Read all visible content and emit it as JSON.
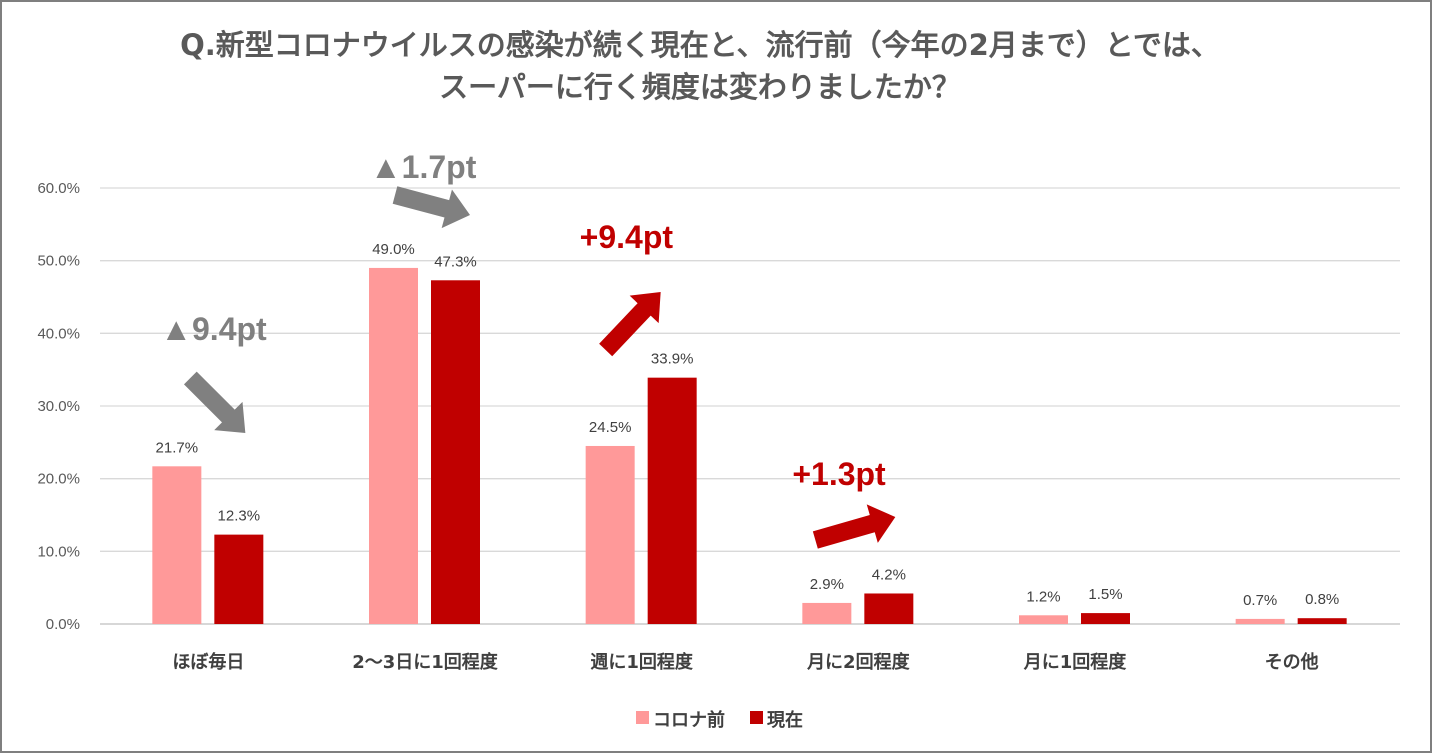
{
  "chart_data": {
    "type": "bar",
    "title_line1": "Q.新型コロナウイルスの感染が続く現在と、流行前（今年の2月まで）とでは、",
    "title_line2": "スーパーに行く頻度は変わりましたか？",
    "categories": [
      "ほぼ毎日",
      "2～3日に1回程度",
      "週に1回程度",
      "月に2回程度",
      "月に1回程度",
      "その他"
    ],
    "series": [
      {
        "name": "コロナ前",
        "color": "#ff9999",
        "values": [
          21.7,
          49.0,
          24.5,
          2.9,
          1.2,
          0.7
        ]
      },
      {
        "name": "現在",
        "color": "#c00000",
        "values": [
          12.3,
          47.3,
          33.9,
          4.2,
          1.5,
          0.8
        ]
      }
    ],
    "ylim": [
      0,
      60
    ],
    "yticks": [
      0,
      10,
      20,
      30,
      40,
      50,
      60
    ],
    "grid": true,
    "legend": "bottom-center",
    "annotations": [
      {
        "text": "▲9.4pt",
        "category": 0,
        "direction": "down",
        "color": "#808080"
      },
      {
        "text": "▲1.7pt",
        "category": 1,
        "direction": "down",
        "color": "#808080"
      },
      {
        "text": "+9.4pt",
        "category": 2,
        "direction": "up",
        "color": "#c00000"
      },
      {
        "text": "+1.3pt",
        "category": 3,
        "direction": "up",
        "color": "#c00000"
      }
    ]
  }
}
